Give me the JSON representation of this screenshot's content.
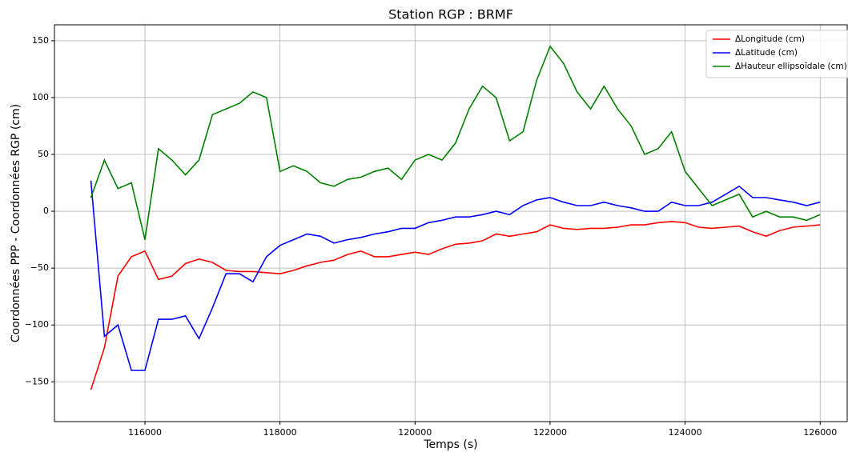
{
  "chart_data": {
    "type": "line",
    "title": "Station RGP : BRMF",
    "xlabel": "Temps (s)",
    "ylabel": "Coordonnées PPP - Coordonnées RGP (cm)",
    "x": [
      115200,
      115400,
      115600,
      115800,
      116000,
      116200,
      116400,
      116600,
      116800,
      117000,
      117200,
      117400,
      117600,
      117800,
      118000,
      118200,
      118400,
      118600,
      118800,
      119000,
      119200,
      119400,
      119600,
      119800,
      120000,
      120200,
      120400,
      120600,
      120800,
      121000,
      121200,
      121400,
      121600,
      121800,
      122000,
      122200,
      122400,
      122600,
      122800,
      123000,
      123200,
      123400,
      123600,
      123800,
      124000,
      124200,
      124400,
      124600,
      124800,
      125000,
      125200,
      125400,
      125600,
      125800,
      126000
    ],
    "series": [
      {
        "name": "ΔLongitude (cm)",
        "color": "#ff0000",
        "values": [
          -157,
          -120,
          -57,
          -40,
          -35,
          -60,
          -57,
          -46,
          -42,
          -45,
          -52,
          -53,
          -53,
          -54,
          -55,
          -52,
          -48,
          -45,
          -43,
          -38,
          -35,
          -40,
          -40,
          -38,
          -36,
          -38,
          -33,
          -29,
          -28,
          -26,
          -20,
          -22,
          -20,
          -18,
          -12,
          -15,
          -16,
          -15,
          -15,
          -14,
          -12,
          -12,
          -10,
          -9,
          -10,
          -14,
          -15,
          -14,
          -13,
          -18,
          -22,
          -17,
          -14,
          -13,
          -12
        ]
      },
      {
        "name": "ΔLatitude (cm)",
        "color": "#0000ff",
        "values": [
          27,
          -110,
          -100,
          -140,
          -140,
          -95,
          -95,
          -92,
          -112,
          -85,
          -55,
          -55,
          -62,
          -40,
          -30,
          -25,
          -20,
          -22,
          -28,
          -25,
          -23,
          -20,
          -18,
          -15,
          -15,
          -10,
          -8,
          -5,
          -5,
          -3,
          0,
          -3,
          5,
          10,
          12,
          8,
          5,
          5,
          8,
          5,
          3,
          0,
          0,
          8,
          5,
          5,
          8,
          15,
          22,
          12,
          12,
          10,
          8,
          5,
          8
        ]
      },
      {
        "name": "ΔHauteur ellipsoïdale (cm)",
        "color": "#008000",
        "values": [
          12,
          45,
          20,
          25,
          -25,
          55,
          45,
          32,
          45,
          85,
          90,
          95,
          105,
          100,
          35,
          40,
          35,
          25,
          22,
          28,
          30,
          35,
          38,
          28,
          45,
          50,
          45,
          60,
          90,
          110,
          100,
          62,
          70,
          115,
          145,
          130,
          105,
          90,
          110,
          90,
          75,
          50,
          55,
          70,
          35,
          20,
          5,
          10,
          15,
          -5,
          0,
          -5,
          -5,
          -8,
          -3
        ]
      }
    ],
    "xlim": [
      114660,
      126400
    ],
    "xticks": [
      116000,
      118000,
      120000,
      122000,
      124000,
      126000
    ],
    "ylim": [
      -185,
      164
    ],
    "yticks": [
      {
        "value": -150,
        "label": "−150"
      },
      {
        "value": -100,
        "label": "−100"
      },
      {
        "value": -50,
        "label": "−50"
      },
      0,
      50,
      100,
      150
    ],
    "grid": true,
    "legend": "upper right"
  }
}
